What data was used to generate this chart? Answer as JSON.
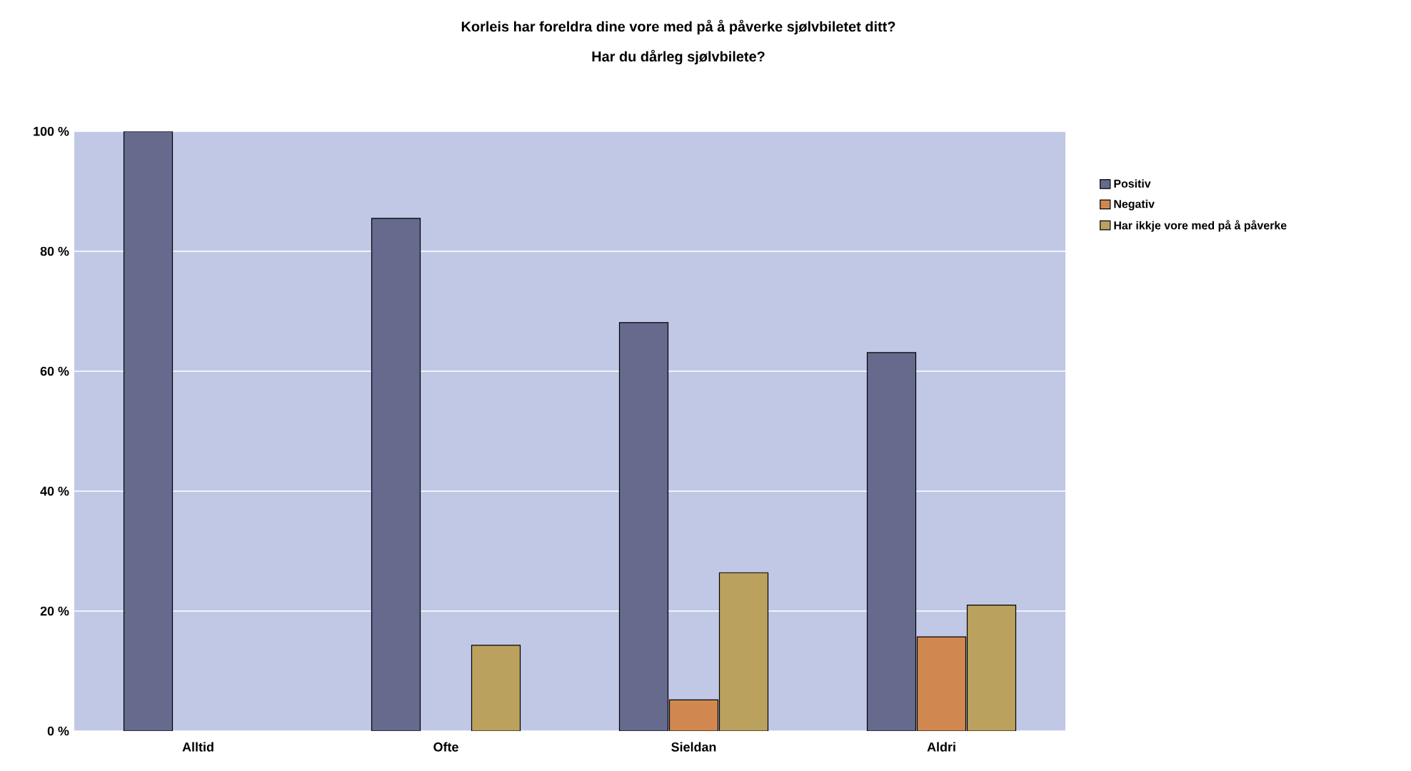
{
  "chart_data": {
    "type": "bar",
    "title": "Korleis har foreldra dine vore med på å påverke sjølvbiletet ditt?",
    "subtitle": "Har du dårleg sjølvbilete?",
    "categories": [
      "Alltid",
      "Ofte",
      "Sieldan",
      "Aldri"
    ],
    "series": [
      {
        "name": "Positiv",
        "color": "#666a8c",
        "values": [
          100,
          85.5,
          68.1,
          63.1
        ]
      },
      {
        "name": "Negativ",
        "color": "#d08850",
        "values": [
          null,
          null,
          5.2,
          15.7
        ]
      },
      {
        "name": "Har ikkje vore med på å påverke",
        "color": "#baa25e",
        "values": [
          null,
          14.3,
          26.4,
          21.0
        ]
      }
    ],
    "ylim": [
      0,
      100
    ],
    "yticks": [
      {
        "value": 0,
        "label": "0 %"
      },
      {
        "value": 20,
        "label": "20 %"
      },
      {
        "value": 40,
        "label": "40 %"
      },
      {
        "value": 60,
        "label": "60 %"
      },
      {
        "value": 80,
        "label": "80 %"
      },
      {
        "value": 100,
        "label": "100 %"
      }
    ],
    "grid": "y",
    "legend": "right"
  }
}
